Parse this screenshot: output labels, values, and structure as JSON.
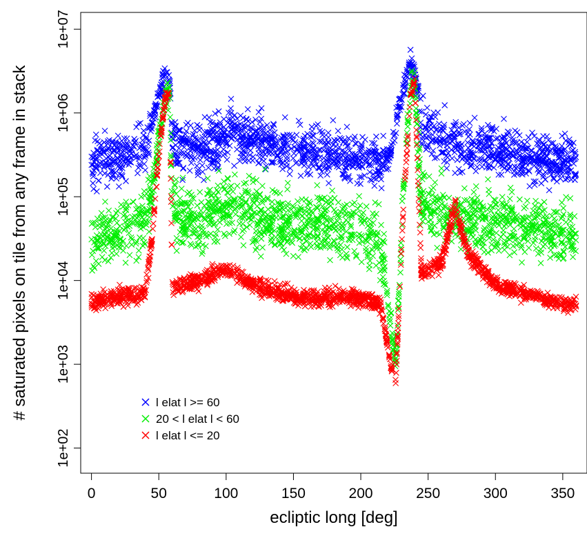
{
  "chart_data": {
    "type": "scatter",
    "xlabel": "ecliptic long [deg]",
    "ylabel": "# saturated pixels on tile from any frame in stack",
    "xlim": [
      -8,
      368
    ],
    "ylim_log10": [
      1.7,
      7.2
    ],
    "y_scale": "log",
    "x_ticks": [
      0,
      50,
      100,
      150,
      200,
      250,
      300,
      350
    ],
    "y_ticks": [
      "1e+02",
      "1e+03",
      "1e+04",
      "1e+05",
      "1e+06",
      "1e+07"
    ],
    "legend_position": "bottom-left",
    "marker": "x",
    "series": [
      {
        "name": "l elat l >= 60",
        "color": "#0000ff",
        "trend_x": [
          0,
          20,
          40,
          45,
          50,
          55,
          58,
          60,
          80,
          100,
          120,
          150,
          180,
          200,
          215,
          222,
          226,
          232,
          237,
          240,
          245,
          260,
          280,
          300,
          320,
          340,
          358
        ],
        "trend_log10_y": [
          5.4,
          5.45,
          5.6,
          5.9,
          6.2,
          6.45,
          6.4,
          5.6,
          5.55,
          5.75,
          5.7,
          5.55,
          5.5,
          5.45,
          5.4,
          5.5,
          5.9,
          6.3,
          6.6,
          6.5,
          5.8,
          5.7,
          5.6,
          5.6,
          5.5,
          5.45,
          5.4
        ],
        "spread_log10": 0.35
      },
      {
        "name": "20 < l elat l < 60",
        "color": "#00ee00",
        "trend_x": [
          0,
          20,
          40,
          45,
          50,
          55,
          58,
          60,
          80,
          100,
          120,
          150,
          180,
          200,
          215,
          222,
          226,
          232,
          237,
          240,
          245,
          260,
          280,
          300,
          320,
          340,
          358
        ],
        "trend_log10_y": [
          4.5,
          4.6,
          4.7,
          5.0,
          5.7,
          6.2,
          6.3,
          4.8,
          4.7,
          4.9,
          4.8,
          4.7,
          4.65,
          4.6,
          4.5,
          3.5,
          3.0,
          5.2,
          6.3,
          6.4,
          4.9,
          4.8,
          4.7,
          4.7,
          4.65,
          4.6,
          4.55
        ],
        "spread_log10": 0.45
      },
      {
        "name": "l elat l <= 20",
        "color": "#ff0000",
        "trend_x": [
          0,
          20,
          40,
          45,
          50,
          55,
          58,
          60,
          80,
          100,
          120,
          150,
          180,
          200,
          215,
          222,
          226,
          232,
          237,
          240,
          245,
          260,
          270,
          280,
          300,
          320,
          340,
          358
        ],
        "trend_log10_y": [
          3.75,
          3.8,
          3.85,
          4.5,
          5.5,
          6.2,
          6.25,
          3.9,
          4.0,
          4.15,
          3.95,
          3.8,
          3.8,
          3.8,
          3.7,
          3.0,
          2.8,
          5.0,
          6.2,
          6.4,
          4.1,
          4.2,
          4.9,
          4.3,
          3.95,
          3.85,
          3.75,
          3.7
        ],
        "spread_log10": 0.12
      }
    ]
  }
}
